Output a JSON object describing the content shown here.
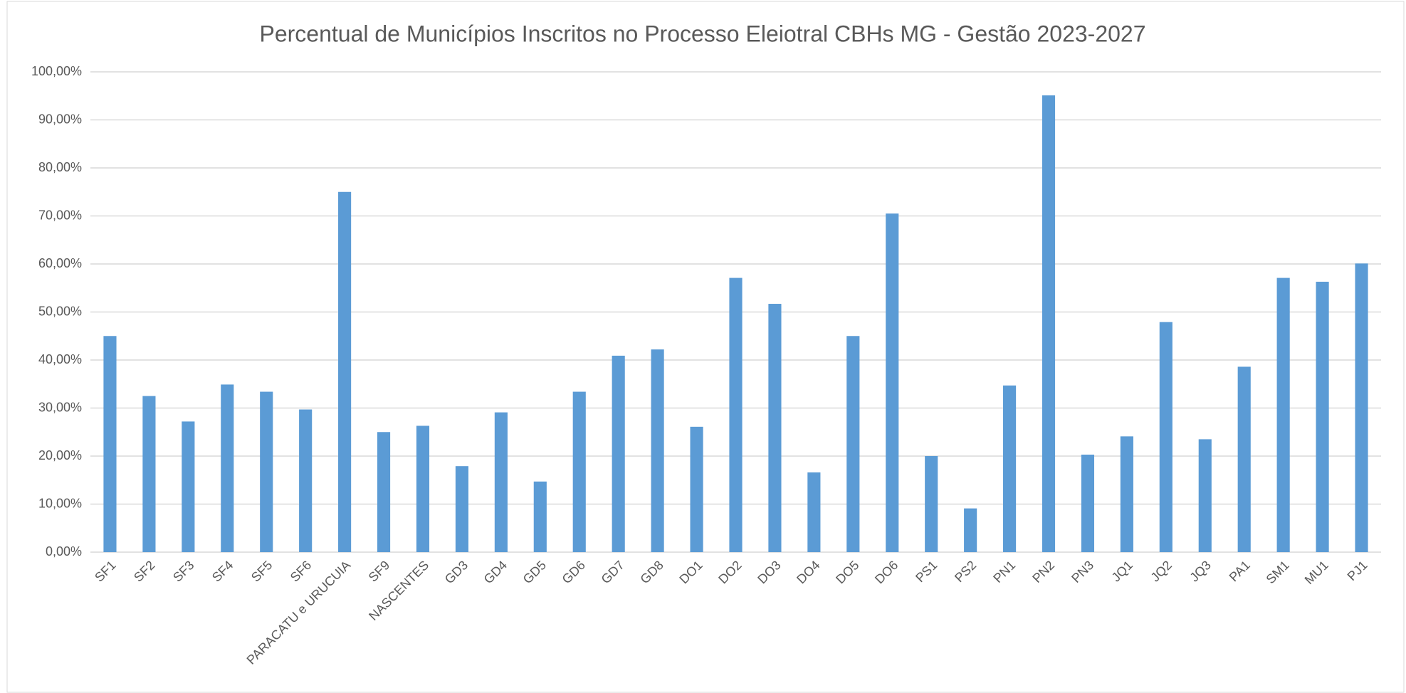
{
  "chart_data": {
    "type": "bar",
    "title": "Percentual de Municípios Inscritos no Processo Eleiotral CBHs MG - Gestão 2023-2027",
    "categories": [
      "SF1",
      "SF2",
      "SF3",
      "SF4",
      "SF5",
      "SF6",
      "PARACATU e URUCUIA",
      "SF9",
      "NASCENTES",
      "GD3",
      "GD4",
      "GD5",
      "GD6",
      "GD7",
      "GD8",
      "DO1",
      "DO2",
      "DO3",
      "DO4",
      "DO5",
      "DO6",
      "PS1",
      "PS2",
      "PN1",
      "PN2",
      "PN3",
      "JQ1",
      "JQ2",
      "JQ3",
      "PA1",
      "SM1",
      "MU1",
      "PJ1"
    ],
    "values": [
      45.0,
      32.5,
      27.2,
      34.9,
      33.4,
      29.7,
      75.0,
      25.0,
      26.3,
      17.9,
      29.1,
      14.7,
      33.4,
      40.9,
      42.2,
      26.1,
      57.1,
      51.7,
      16.6,
      45.0,
      70.5,
      20.0,
      9.1,
      34.7,
      95.1,
      20.3,
      24.1,
      47.9,
      23.5,
      38.6,
      57.1,
      56.3,
      60.1
    ],
    "color": "#5b9bd5",
    "ylim": [
      0,
      100
    ],
    "yticks": [
      {
        "value": 0,
        "label": "0,00%"
      },
      {
        "value": 10,
        "label": "10,00%"
      },
      {
        "value": 20,
        "label": "20,00%"
      },
      {
        "value": 30,
        "label": "30,00%"
      },
      {
        "value": 40,
        "label": "40,00%"
      },
      {
        "value": 50,
        "label": "50,00%"
      },
      {
        "value": 60,
        "label": "60,00%"
      },
      {
        "value": 70,
        "label": "70,00%"
      },
      {
        "value": 80,
        "label": "80,00%"
      },
      {
        "value": 90,
        "label": "90,00%"
      },
      {
        "value": 100,
        "label": "100,00%"
      }
    ],
    "grid": true
  }
}
